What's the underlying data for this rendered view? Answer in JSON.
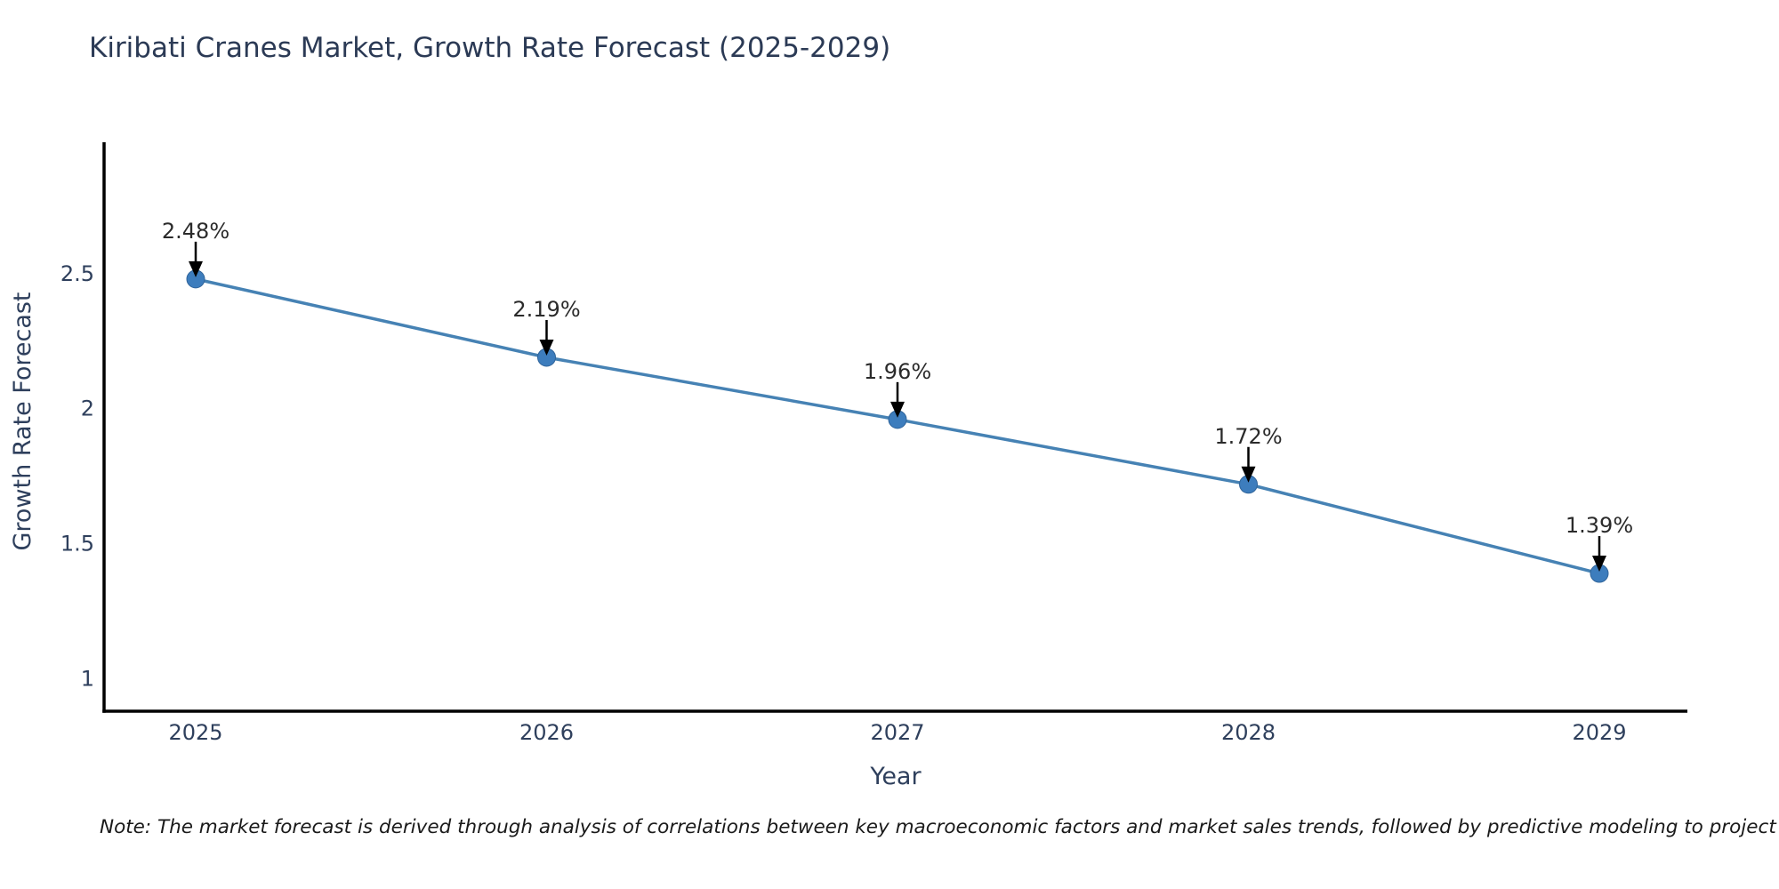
{
  "page": {
    "title": "Kiribati Cranes Market, Growth Rate Forecast (2025-2029)",
    "note": "Note: The market forecast is derived through analysis of correlations between key macroeconomic factors and market sales trends, followed by predictive modeling to project future sales"
  },
  "chart_data": {
    "type": "line",
    "title": "Kiribati Cranes Market, Growth Rate Forecast (2025-2029)",
    "xlabel": "Year",
    "ylabel": "Growth Rate Forecast",
    "x": [
      2025,
      2026,
      2027,
      2028,
      2029
    ],
    "values": [
      2.48,
      2.19,
      1.96,
      1.72,
      1.39
    ],
    "point_labels": [
      "2.48%",
      "2.19%",
      "1.96%",
      "1.72%",
      "1.39%"
    ],
    "xtick_labels": [
      "2025",
      "2026",
      "2027",
      "2028",
      "2029"
    ],
    "yticks": [
      1,
      1.5,
      2,
      2.5
    ],
    "ytick_labels": [
      "1",
      "1.5",
      "2",
      "2.5"
    ],
    "xlim": [
      2024.74,
      2029.25
    ],
    "ylim": [
      0.88,
      2.98
    ],
    "grid": false,
    "legend_position": "none",
    "annotation_style": "value label with downward black arrow above each point",
    "colors": {
      "line": "#4682b4",
      "marker_fill": "#3d7dbd",
      "marker_edge": "#30649a",
      "arrow": "#000000",
      "axis_line": "#000000",
      "tick_text": "#2e3f5c",
      "title_text": "#2b3a55",
      "point_label_text": "#2b2b2b"
    }
  }
}
